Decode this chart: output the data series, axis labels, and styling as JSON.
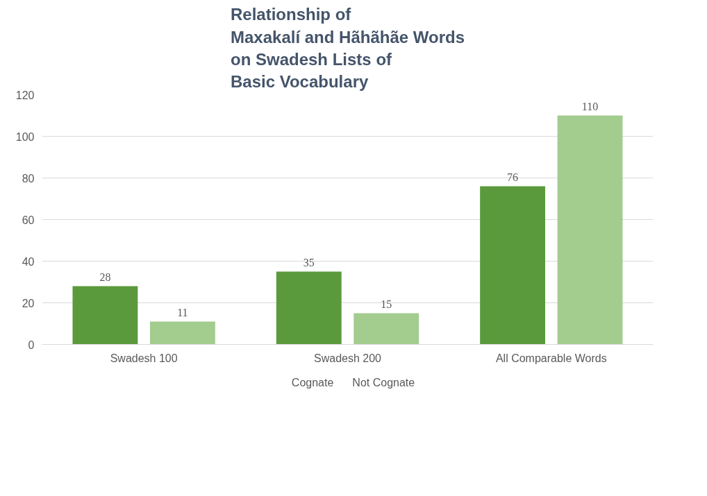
{
  "chart_data": {
    "type": "bar",
    "title": "Relationship of\nMaxakalí and Hãhãhãe Words\non Swadesh Lists of\nBasic Vocabulary",
    "categories": [
      "Swadesh 100",
      "Swadesh 200",
      "All Comparable Words"
    ],
    "series": [
      {
        "name": "Cognate",
        "color": "#5b9a3c",
        "values": [
          28,
          35,
          76
        ]
      },
      {
        "name": "Not Cognate",
        "color": "#a3cc8f",
        "values": [
          11,
          15,
          110
        ]
      }
    ],
    "ylim": [
      0,
      120
    ],
    "yticks": [
      0,
      20,
      40,
      60,
      80,
      100,
      120
    ],
    "grid": "y",
    "legend": "bottom",
    "data_labels": true
  }
}
